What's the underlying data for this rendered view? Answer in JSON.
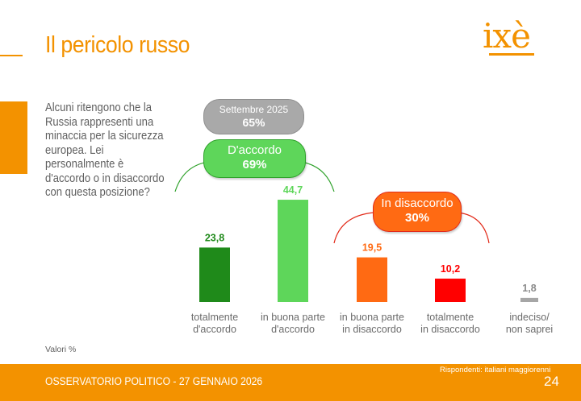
{
  "header": {
    "title": "Il pericolo russo",
    "logo_text": "ixè"
  },
  "question": "Alcuni ritengono che la Russia rappresenti una minaccia per la sicurezza europea. Lei personalmente è d'accordo o in disaccordo con questa posizione?",
  "callouts": {
    "previous": {
      "label": "Settembre 2025",
      "value": "65%"
    },
    "agree": {
      "label": "D'accordo",
      "value": "69%"
    },
    "disagree": {
      "label": "In disaccordo",
      "value": "30%"
    }
  },
  "notes": {
    "units": "Valori %"
  },
  "footer": {
    "text": "OSSERVATORIO POLITICO - 27 GENNAIO 2026",
    "respondents": "Rispondenti: italiani maggiorenni",
    "page_number": "24"
  },
  "colors": {
    "brand": "#f39200",
    "strongly_agree": "#1f8a1a",
    "agree": "#5ed65a",
    "disagree": "#ff6a13",
    "strongly_disagree": "#ff0000",
    "undecided": "#a6a6a6"
  },
  "chart_data": {
    "type": "bar",
    "categories": [
      [
        "totalmente",
        "d'accordo"
      ],
      [
        "in buona parte",
        "d'accordo"
      ],
      [
        "in buona parte",
        "in disaccordo"
      ],
      [
        "totalmente",
        "in disaccordo"
      ],
      [
        "indeciso/",
        "non saprei"
      ]
    ],
    "values": [
      23.8,
      44.7,
      19.5,
      10.2,
      1.8
    ],
    "value_labels": [
      "23,8",
      "44,7",
      "19,5",
      "10,2",
      "1,8"
    ],
    "bar_colors": [
      "#1f8a1a",
      "#5ed65a",
      "#ff6a13",
      "#ff0000",
      "#a6a6a6"
    ],
    "label_colors": [
      "#1f8a1a",
      "#5ed65a",
      "#ff6a13",
      "#ff0000",
      "#8a8a8a"
    ],
    "ylim": [
      0,
      50
    ],
    "grid": false,
    "xlabel": "",
    "ylabel": ""
  }
}
